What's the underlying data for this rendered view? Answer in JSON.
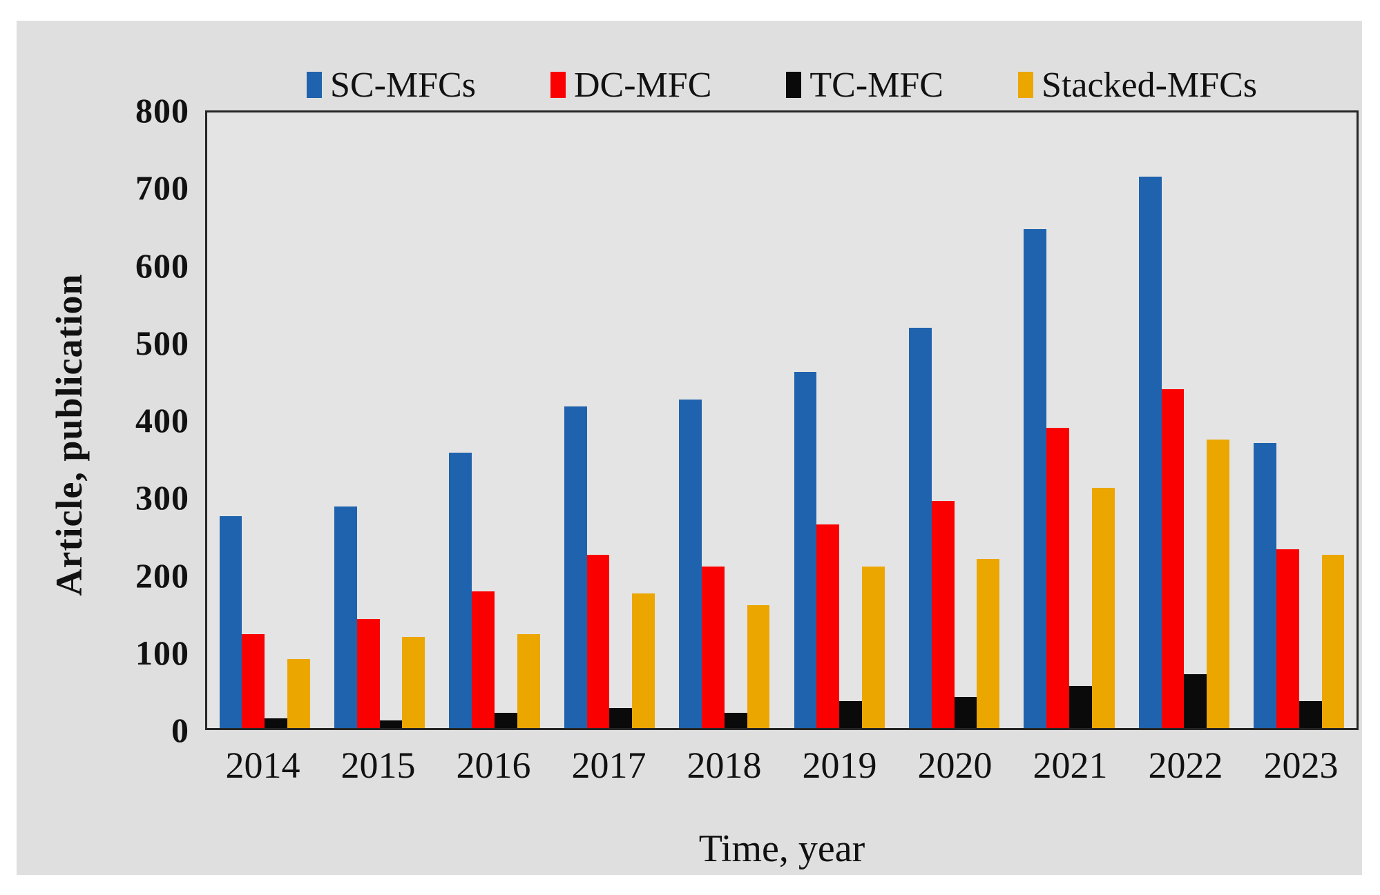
{
  "figure": {
    "background": "#ffffff",
    "panel_background": "#dfdfdf",
    "plot_background": "#e4e4e4",
    "border_color": "#262626"
  },
  "chart_data": {
    "type": "bar",
    "title": "",
    "xlabel": "Time, year",
    "ylabel": "Article, publication",
    "categories": [
      "2014",
      "2015",
      "2016",
      "2017",
      "2018",
      "2019",
      "2020",
      "2021",
      "2022",
      "2023"
    ],
    "ylim": [
      0,
      800
    ],
    "yticks": [
      0,
      100,
      200,
      300,
      400,
      500,
      600,
      700,
      800
    ],
    "grid": false,
    "legend_position": "top-center",
    "series": [
      {
        "name": "SC-MFCs",
        "color": "#1f63ae",
        "values": [
          275,
          288,
          358,
          418,
          427,
          463,
          520,
          648,
          717,
          370
        ]
      },
      {
        "name": "DC-MFC",
        "color": "#fb0000",
        "values": [
          122,
          142,
          178,
          225,
          210,
          265,
          295,
          390,
          440,
          232
        ]
      },
      {
        "name": "TC-MFC",
        "color": "#0a0a0a",
        "values": [
          13,
          10,
          20,
          26,
          20,
          35,
          40,
          55,
          70,
          35
        ]
      },
      {
        "name": "Stacked-MFCs",
        "color": "#eba600",
        "values": [
          90,
          118,
          122,
          175,
          160,
          210,
          220,
          312,
          375,
          225
        ]
      }
    ]
  }
}
